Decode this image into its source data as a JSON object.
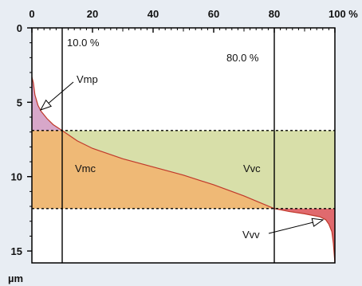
{
  "chart_data": {
    "type": "area",
    "title": "",
    "x_unit": "%",
    "y_unit": "µm",
    "xlim": [
      0,
      100
    ],
    "ylim": [
      0,
      15.8
    ],
    "x_ticks": [
      0,
      20,
      40,
      60,
      80,
      100
    ],
    "x_tick_labels": [
      "0",
      "20",
      "40",
      "60",
      "80",
      "100 %"
    ],
    "y_ticks": [
      0,
      5,
      10,
      15
    ],
    "y_tick_labels": [
      "0",
      "5",
      "10",
      "15"
    ],
    "y_axis_label": "µm",
    "y_inverted": true,
    "grid": false,
    "thresholds": {
      "x_lines": [
        10,
        80
      ],
      "x_line_labels": [
        "10.0 %",
        "80.0 %"
      ],
      "y_lines": [
        6.9,
        12.15
      ]
    },
    "curve": {
      "x": [
        0,
        0.5,
        1,
        2,
        3,
        5,
        7,
        10,
        15,
        20,
        30,
        40,
        50,
        60,
        70,
        80,
        85,
        90,
        95,
        97,
        98,
        99,
        99.5,
        100
      ],
      "y": [
        3.3,
        3.7,
        4.5,
        5.2,
        5.6,
        6.1,
        6.5,
        6.9,
        7.6,
        8.1,
        8.8,
        9.35,
        9.9,
        10.55,
        11.3,
        12.15,
        12.35,
        12.5,
        12.7,
        12.9,
        13.2,
        13.7,
        14.5,
        15.8
      ]
    },
    "regions": [
      {
        "label": "Vmp",
        "color": "#d7a7c9"
      },
      {
        "label": "Vmc",
        "color": "#efb976"
      },
      {
        "label": "Vvc",
        "color": "#d8dfa9"
      },
      {
        "label": "Vvv",
        "color": "#e06a6e"
      }
    ],
    "line_color": "#c0392b"
  }
}
